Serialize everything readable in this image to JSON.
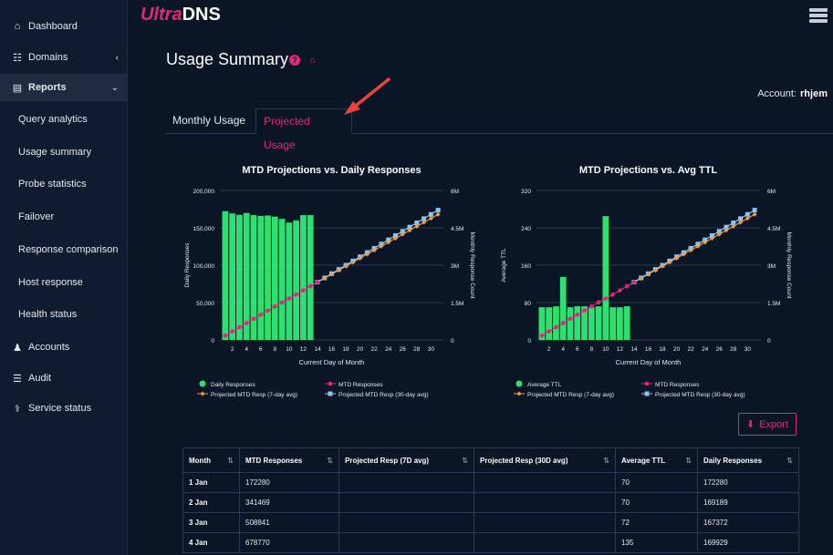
{
  "sidebar": {
    "items": [
      {
        "label": "Dashboard",
        "icon": "home-icon"
      },
      {
        "label": "Domains",
        "icon": "sitemap-icon"
      },
      {
        "label": "Reports",
        "icon": "bar-chart-icon"
      },
      {
        "label": "Query analytics"
      },
      {
        "label": "Usage summary"
      },
      {
        "label": "Probe statistics"
      },
      {
        "label": "Failover"
      },
      {
        "label": "Response comparison"
      },
      {
        "label": "Host response"
      },
      {
        "label": "Health status"
      },
      {
        "label": "Accounts",
        "icon": "user-icon"
      },
      {
        "label": "Audit",
        "icon": "list-icon"
      },
      {
        "label": "Service status",
        "icon": "stethoscope-icon"
      }
    ]
  },
  "header": {
    "logo_left": "Ultra",
    "logo_right": "DNS"
  },
  "page": {
    "title": "Usage Summary",
    "account_label": "Account:",
    "account_name": "rhjem"
  },
  "tabs": [
    {
      "label": "Monthly Usage"
    },
    {
      "label": "Projected Usage"
    }
  ],
  "export_label": "Export",
  "colors": {
    "accent": "#e0277b",
    "bars": "#2ee06f",
    "mtd": "#e0277b",
    "proj7": "#f59a3a",
    "proj30": "#8cc4ee"
  },
  "chart_data": [
    {
      "type": "bar",
      "title": "MTD Projections vs. Daily Responses",
      "xlabel": "Current Day of Month",
      "ylabel": "Daily Responses",
      "y2label": "Monthly Response Count",
      "ylim": [
        0,
        200000
      ],
      "y2lim": [
        0,
        6000000
      ],
      "yticks": [
        "0",
        "50,000",
        "100,000",
        "150,000",
        "200,000"
      ],
      "y2ticks": [
        "0",
        "1.5M",
        "3M",
        "4.5M",
        "6M"
      ],
      "xticks": [
        "2",
        "4",
        "6",
        "8",
        "10",
        "12",
        "14",
        "16",
        "18",
        "20",
        "22",
        "24",
        "26",
        "28",
        "30"
      ],
      "days": [
        1,
        2,
        3,
        4,
        5,
        6,
        7,
        8,
        9,
        10,
        11,
        12,
        13,
        14,
        15,
        16,
        17,
        18,
        19,
        20,
        21,
        22,
        23,
        24,
        25,
        26,
        27,
        28,
        29,
        30,
        31
      ],
      "bars": [
        172280,
        169189,
        167372,
        169929,
        167000,
        166000,
        166500,
        165000,
        162000,
        157000,
        160000,
        167000,
        167000
      ],
      "mtd": [
        172280,
        341469,
        508841,
        678770,
        845770,
        1011770,
        1178270,
        1343270,
        1505270,
        1662270,
        1822270,
        1989270,
        2156270,
        2320000
      ],
      "proj7": [
        2320000,
        2480000,
        2640000,
        2800000,
        2960000,
        3120000,
        3280000,
        3440000,
        3600000,
        3760000,
        3920000,
        4080000,
        4240000,
        4400000,
        4560000,
        4720000,
        4880000,
        5040000
      ],
      "proj30": [
        2320000,
        2490000,
        2660000,
        2830000,
        3000000,
        3170000,
        3340000,
        3510000,
        3680000,
        3850000,
        4020000,
        4190000,
        4360000,
        4530000,
        4700000,
        4870000,
        5040000,
        5210000
      ],
      "legend": [
        "Daily Responses",
        "MTD Responses",
        "Projected MTD Resp (7-day avg)",
        "Projected MTD Resp (30-day avg)"
      ]
    },
    {
      "type": "bar",
      "title": "MTD Projections vs. Avg TTL",
      "xlabel": "Current Day of Month",
      "ylabel": "Average TTL",
      "y2label": "Monthly Response Count",
      "ylim": [
        0,
        320
      ],
      "y2lim": [
        0,
        6000000
      ],
      "yticks": [
        "0",
        "80",
        "160",
        "240",
        "320"
      ],
      "y2ticks": [
        "0",
        "1.5M",
        "3M",
        "4.5M",
        "6M"
      ],
      "xticks": [
        "2",
        "4",
        "6",
        "8",
        "10",
        "12",
        "14",
        "16",
        "18",
        "20",
        "22",
        "24",
        "26",
        "28",
        "30"
      ],
      "days": [
        1,
        2,
        3,
        4,
        5,
        6,
        7,
        8,
        9,
        10,
        11,
        12,
        13,
        14,
        15,
        16,
        17,
        18,
        19,
        20,
        21,
        22,
        23,
        24,
        25,
        26,
        27,
        28,
        29,
        30,
        31
      ],
      "bars": [
        70,
        70,
        72,
        135,
        70,
        72,
        72,
        70,
        72,
        265,
        70,
        70,
        72
      ],
      "mtd": [
        172280,
        341469,
        508841,
        678770,
        845770,
        1011770,
        1178270,
        1343270,
        1505270,
        1662270,
        1822270,
        1989270,
        2156270,
        2320000
      ],
      "proj7": [
        2320000,
        2480000,
        2640000,
        2800000,
        2960000,
        3120000,
        3280000,
        3440000,
        3600000,
        3760000,
        3920000,
        4080000,
        4240000,
        4400000,
        4560000,
        4720000,
        4880000,
        5040000
      ],
      "proj30": [
        2320000,
        2490000,
        2660000,
        2830000,
        3000000,
        3170000,
        3340000,
        3510000,
        3680000,
        3850000,
        4020000,
        4190000,
        4360000,
        4530000,
        4700000,
        4870000,
        5040000,
        5210000
      ],
      "legend": [
        "Average TTL",
        "MTD Responses",
        "Projected MTD Resp (7-day avg)",
        "Projected MTD Resp (30-day avg)"
      ]
    }
  ],
  "table": {
    "headers": [
      "Month",
      "MTD Responses",
      "Projected Resp (7D avg)",
      "Projected Resp (30D avg)",
      "Average TTL",
      "Daily Responses"
    ],
    "rows": [
      [
        "1 Jan",
        "172280",
        "",
        "",
        "70",
        "172280"
      ],
      [
        "2 Jan",
        "341469",
        "",
        "",
        "70",
        "169189"
      ],
      [
        "3 Jan",
        "508841",
        "",
        "",
        "72",
        "167372"
      ],
      [
        "4 Jan",
        "678770",
        "",
        "",
        "135",
        "169929"
      ]
    ]
  }
}
